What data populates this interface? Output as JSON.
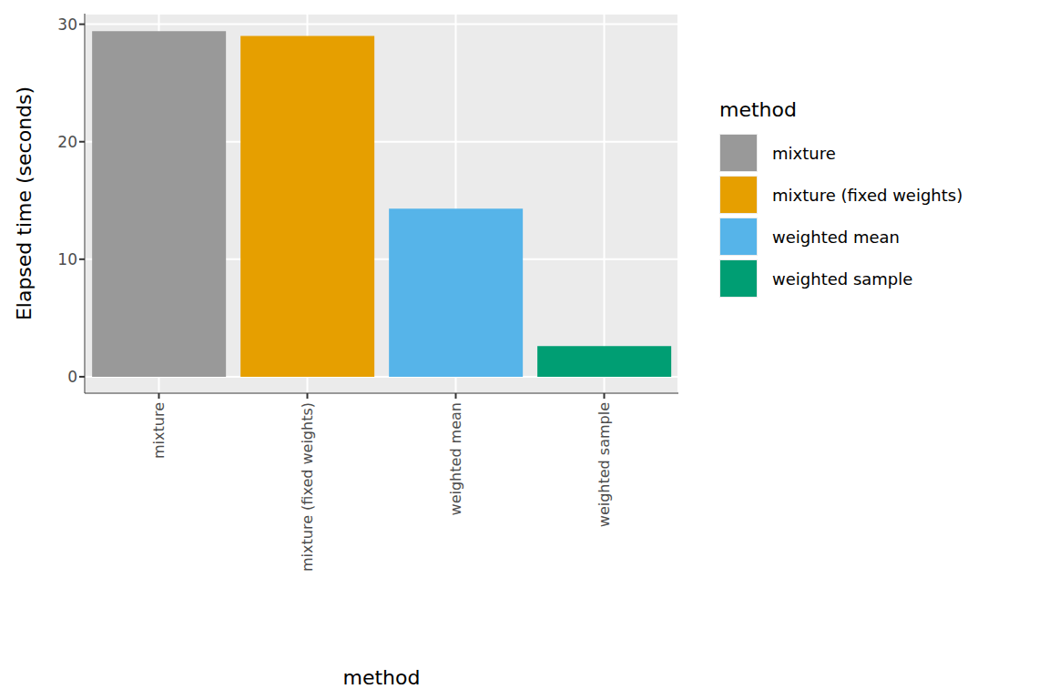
{
  "chart_data": {
    "type": "bar",
    "x_label": "method",
    "y_label": "Elapsed time (seconds)",
    "legend_title": "method",
    "categories": [
      "mixture",
      "mixture (fixed weights)",
      "weighted mean",
      "weighted sample"
    ],
    "values": [
      29.4,
      29.0,
      14.3,
      2.6
    ],
    "colors": [
      "#999999",
      "#E69F00",
      "#56B4E9",
      "#009E73"
    ],
    "ylim": [
      -1.4,
      30.9
    ],
    "yticks": [
      0,
      10,
      20,
      30
    ],
    "grid": true,
    "legend": "right"
  }
}
